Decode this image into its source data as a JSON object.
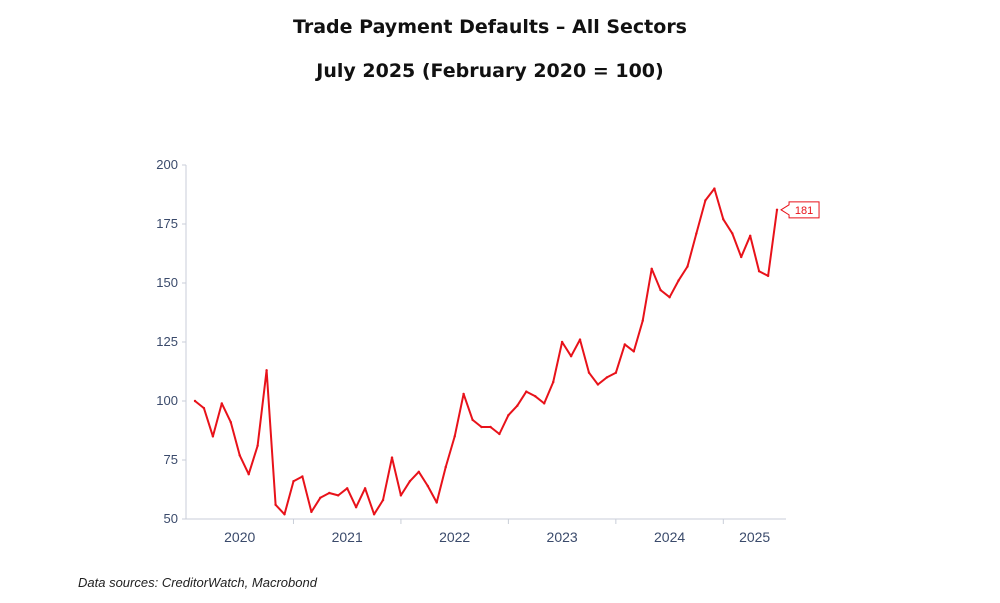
{
  "title": "Trade Payment Defaults – All Sectors",
  "subtitle": "July 2025 (February 2020 = 100)",
  "source": "Data sources: CreditorWatch, Macrobond",
  "colors": {
    "line": "#e8121a",
    "axis": "#c9ced8",
    "tick_text": "#3a4a6b"
  },
  "chart_data": {
    "type": "line",
    "title": "Trade Payment Defaults – All Sectors",
    "subtitle": "July 2025 (February 2020 = 100)",
    "xlabel": "",
    "ylabel": "",
    "ylim": [
      50,
      200
    ],
    "yticks": [
      50,
      75,
      100,
      125,
      150,
      175,
      200
    ],
    "xlim": [
      "2020-01",
      "2025-08"
    ],
    "xtick_labels": [
      "2020",
      "2021",
      "2022",
      "2023",
      "2024",
      "2025"
    ],
    "grid": false,
    "legend": "none",
    "last_value_label": "181",
    "series": [
      {
        "color": "#e8121a",
        "points": [
          [
            "2020-02",
            100
          ],
          [
            "2020-03",
            97
          ],
          [
            "2020-04",
            85
          ],
          [
            "2020-05",
            99
          ],
          [
            "2020-06",
            91
          ],
          [
            "2020-07",
            77
          ],
          [
            "2020-08",
            69
          ],
          [
            "2020-09",
            81
          ],
          [
            "2020-10",
            113
          ],
          [
            "2020-11",
            56
          ],
          [
            "2020-12",
            52
          ],
          [
            "2021-01",
            66
          ],
          [
            "2021-02",
            68
          ],
          [
            "2021-03",
            53
          ],
          [
            "2021-04",
            59
          ],
          [
            "2021-05",
            61
          ],
          [
            "2021-06",
            60
          ],
          [
            "2021-07",
            63
          ],
          [
            "2021-08",
            55
          ],
          [
            "2021-09",
            63
          ],
          [
            "2021-10",
            52
          ],
          [
            "2021-11",
            58
          ],
          [
            "2021-12",
            76
          ],
          [
            "2022-01",
            60
          ],
          [
            "2022-02",
            66
          ],
          [
            "2022-03",
            70
          ],
          [
            "2022-04",
            64
          ],
          [
            "2022-05",
            57
          ],
          [
            "2022-06",
            72
          ],
          [
            "2022-07",
            85
          ],
          [
            "2022-08",
            103
          ],
          [
            "2022-09",
            92
          ],
          [
            "2022-10",
            89
          ],
          [
            "2022-11",
            89
          ],
          [
            "2022-12",
            86
          ],
          [
            "2023-01",
            94
          ],
          [
            "2023-02",
            98
          ],
          [
            "2023-03",
            104
          ],
          [
            "2023-04",
            102
          ],
          [
            "2023-05",
            99
          ],
          [
            "2023-06",
            108
          ],
          [
            "2023-07",
            125
          ],
          [
            "2023-08",
            119
          ],
          [
            "2023-09",
            126
          ],
          [
            "2023-10",
            112
          ],
          [
            "2023-11",
            107
          ],
          [
            "2023-12",
            110
          ],
          [
            "2024-01",
            112
          ],
          [
            "2024-02",
            124
          ],
          [
            "2024-03",
            121
          ],
          [
            "2024-04",
            134
          ],
          [
            "2024-05",
            156
          ],
          [
            "2024-06",
            147
          ],
          [
            "2024-07",
            144
          ],
          [
            "2024-08",
            151
          ],
          [
            "2024-09",
            157
          ],
          [
            "2024-10",
            171
          ],
          [
            "2024-11",
            185
          ],
          [
            "2024-12",
            190
          ],
          [
            "2025-01",
            177
          ],
          [
            "2025-02",
            171
          ],
          [
            "2025-03",
            161
          ],
          [
            "2025-04",
            170
          ],
          [
            "2025-05",
            155
          ],
          [
            "2025-06",
            153
          ],
          [
            "2025-07",
            181
          ]
        ]
      }
    ]
  }
}
